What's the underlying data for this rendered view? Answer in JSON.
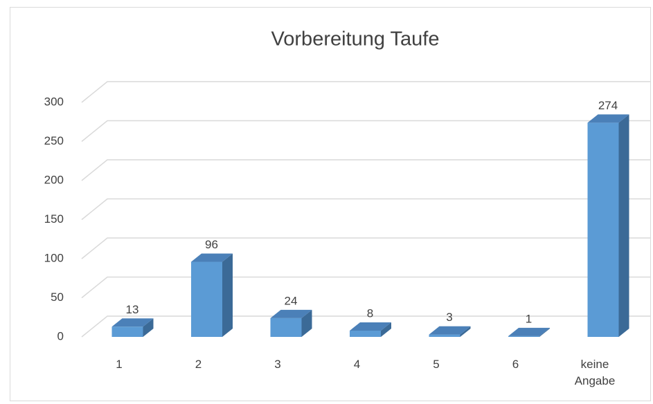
{
  "chart_data": {
    "type": "bar",
    "title": "Vorbereitung Taufe",
    "categories": [
      "1",
      "2",
      "3",
      "4",
      "5",
      "6",
      "keine Angabe"
    ],
    "values": [
      13,
      96,
      24,
      8,
      3,
      1,
      274
    ],
    "color": "#5b9bd5",
    "ylim": [
      0,
      300
    ],
    "yticks": [
      0,
      50,
      100,
      150,
      200,
      250,
      300
    ],
    "grid": true
  }
}
